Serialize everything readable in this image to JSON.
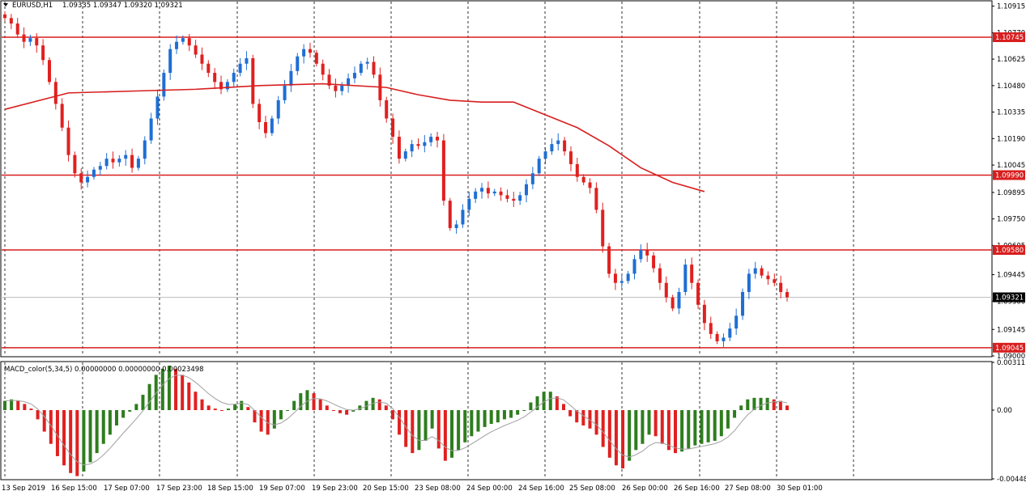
{
  "header": {
    "symbol_label": "EURUSD,H1",
    "ohlc": "1.09335 1.09347 1.09320 1.09321",
    "macd_label": "MACD_color(5,34,5) 0.00000000 0.00000000 0.00023498"
  },
  "colors": {
    "bull": "#1f6ed4",
    "bear": "#e02020",
    "line_red": "#d81e1e",
    "macd_green": "#2e7d1e",
    "macd_red": "#e02020",
    "signal": "#a0a0a0",
    "grid": "#000000"
  },
  "chart_data": [
    {
      "type": "candlestick",
      "symbol": "EURUSD",
      "timeframe": "H1",
      "ylim": [
        1.09,
        1.1094
      ],
      "y_ticks": [
        "1.10915",
        "1.10770",
        "1.10625",
        "1.10480",
        "1.10335",
        "1.10190",
        "1.10045",
        "1.09895",
        "1.09750",
        "1.09605",
        "1.09445",
        "1.09300",
        "1.09145",
        "1.09000"
      ],
      "x_ticks": [
        "13 Sep 2019",
        "16 Sep 15:00",
        "17 Sep 07:00",
        "17 Sep 23:00",
        "18 Sep 15:00",
        "19 Sep 07:00",
        "19 Sep 23:00",
        "20 Sep 15:00",
        "23 Sep 08:00",
        "24 Sep 00:00",
        "24 Sep 16:00",
        "25 Sep 08:00",
        "26 Sep 00:00",
        "26 Sep 16:00",
        "27 Sep 08:00",
        "30 Sep 01:00"
      ],
      "current_price": 1.09321,
      "current_price_label": "1.09321",
      "horizontal_levels": [
        {
          "value": 1.10745,
          "label": "1.10745"
        },
        {
          "value": 1.0999,
          "label": "1.09990"
        },
        {
          "value": 1.0958,
          "label": "1.09580"
        },
        {
          "value": 1.09045,
          "label": "1.09045"
        }
      ],
      "close_path": [
        1.1085,
        1.1082,
        1.1076,
        1.1072,
        1.1074,
        1.107,
        1.1062,
        1.105,
        1.1038,
        1.1025,
        1.101,
        1.1,
        1.0995,
        1.0998,
        1.1002,
        1.1004,
        1.1008,
        1.1006,
        1.1008,
        1.101,
        1.1003,
        1.1008,
        1.1018,
        1.103,
        1.1042,
        1.1055,
        1.1068,
        1.1072,
        1.1074,
        1.107,
        1.1065,
        1.106,
        1.1055,
        1.105,
        1.1046,
        1.105,
        1.1055,
        1.106,
        1.1063,
        1.1038,
        1.1028,
        1.1022,
        1.103,
        1.104,
        1.1048,
        1.1056,
        1.1064,
        1.1068,
        1.1066,
        1.106,
        1.1054,
        1.1048,
        1.1045,
        1.1048,
        1.1052,
        1.1055,
        1.106,
        1.1061,
        1.1054,
        1.104,
        1.103,
        1.102,
        1.1008,
        1.1012,
        1.1016,
        1.1015,
        1.1017,
        1.102,
        1.1018,
        1.0985,
        1.097,
        1.0972,
        1.098,
        1.0986,
        1.099,
        1.0992,
        1.0989,
        1.099,
        1.0988,
        1.0986,
        1.0985,
        1.0988,
        1.0994,
        1.1,
        1.1008,
        1.1012,
        1.1016,
        1.1018,
        1.1012,
        1.1005,
        1.0998,
        1.0995,
        1.0992,
        1.098,
        1.096,
        1.0945,
        1.094,
        1.0941,
        1.0945,
        1.0953,
        1.0958,
        1.0955,
        1.0948,
        1.094,
        1.0932,
        1.0926,
        1.0935,
        1.095,
        1.094,
        1.0928,
        1.0918,
        1.0912,
        1.0908,
        1.091,
        1.0915,
        1.0922,
        1.0935,
        1.0945,
        1.0948,
        1.0944,
        1.0942,
        1.094,
        1.0935,
        1.09321
      ],
      "ma_line": [
        [
          0,
          1.1035
        ],
        [
          10,
          1.1044
        ],
        [
          20,
          1.1045
        ],
        [
          30,
          1.1046
        ],
        [
          40,
          1.1048
        ],
        [
          50,
          1.1049
        ],
        [
          60,
          1.1047
        ],
        [
          65,
          1.1043
        ],
        [
          70,
          1.104
        ],
        [
          75,
          1.1039
        ],
        [
          80,
          1.1039
        ],
        [
          85,
          1.1032
        ],
        [
          90,
          1.1025
        ],
        [
          95,
          1.1015
        ],
        [
          100,
          1.1003
        ],
        [
          105,
          1.0995
        ],
        [
          110,
          1.099
        ]
      ]
    },
    {
      "type": "bar",
      "name": "MACD_color(5,34,5)",
      "ylim": [
        -0.00448,
        0.00311
      ],
      "y_ticks": [
        "0.00311",
        "0.00",
        "-0.00448"
      ],
      "values": [
        0.0006,
        0.0007,
        0.0006,
        0.0004,
        0.0001,
        -0.0006,
        -0.0014,
        -0.0022,
        -0.003,
        -0.0036,
        -0.0041,
        -0.0043,
        -0.004,
        -0.0034,
        -0.0028,
        -0.0022,
        -0.0016,
        -0.001,
        -0.0005,
        -0.0001,
        0.0004,
        0.001,
        0.0017,
        0.0023,
        0.0027,
        0.0029,
        0.0027,
        0.0023,
        0.0018,
        0.0012,
        0.0007,
        0.0003,
        0.0001,
        0.0,
        0.0001,
        0.0004,
        0.0006,
        0.0002,
        -0.0008,
        -0.0014,
        -0.0016,
        -0.0012,
        -0.0006,
        0.0,
        0.0006,
        0.0011,
        0.0013,
        0.0011,
        0.0007,
        0.0003,
        0.0,
        -0.0002,
        -0.0003,
        -0.0001,
        0.0003,
        0.0006,
        0.0008,
        0.0007,
        0.0003,
        -0.0006,
        -0.0016,
        -0.0024,
        -0.0028,
        -0.0026,
        -0.002,
        -0.0012,
        -0.0025,
        -0.0033,
        -0.0031,
        -0.0026,
        -0.0021,
        -0.0017,
        -0.0014,
        -0.0011,
        -0.0009,
        -0.0008,
        -0.0006,
        -0.0005,
        -0.0003,
        0.0,
        0.0005,
        0.0009,
        0.0012,
        0.0012,
        0.0009,
        0.0004,
        -0.0004,
        -0.0008,
        -0.001,
        -0.0012,
        -0.0016,
        -0.0024,
        -0.0031,
        -0.0036,
        -0.0038,
        -0.0033,
        -0.0026,
        -0.0022,
        -0.0016,
        -0.0017,
        -0.0022,
        -0.0026,
        -0.0028,
        -0.0027,
        -0.0025,
        -0.0023,
        -0.0022,
        -0.0021,
        -0.002,
        -0.0017,
        -0.0012,
        -0.0005,
        0.0003,
        0.0007,
        0.0008,
        0.0008,
        0.0008,
        0.0007,
        0.0006,
        0.0003
      ]
    }
  ]
}
